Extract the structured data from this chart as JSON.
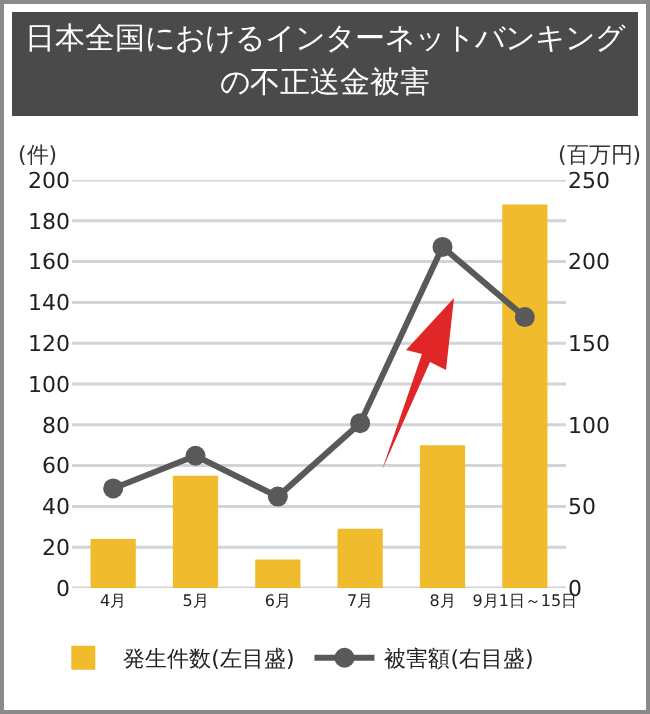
{
  "chart_data": {
    "type": "bar",
    "title": "日本全国におけるインターネットバンキングの不正送金被害",
    "categories": [
      "4月",
      "5月",
      "6月",
      "7月",
      "8月",
      "9月1日～15日"
    ],
    "series": [
      {
        "name": "発生件数(左目盛)",
        "color": "#f0bc2e",
        "values": [
          24,
          55,
          14,
          29,
          70,
          188
        ]
      },
      {
        "name": "被害額(右目盛)",
        "type": "line",
        "axis": "y2",
        "color": "#595959",
        "marker": "circle",
        "line_style": "solid",
        "values": [
          61,
          81,
          56,
          101,
          209,
          166
        ]
      }
    ],
    "ylabel": "(件)",
    "y2label": "(百万円)",
    "ylim": [
      0,
      200
    ],
    "yticks": [
      0,
      20,
      40,
      60,
      80,
      100,
      120,
      140,
      160,
      180,
      200
    ],
    "y2lim": [
      0,
      250
    ],
    "y2ticks": [
      0,
      50,
      100,
      150,
      200,
      250
    ],
    "grid": "y",
    "legend": "bottom"
  }
}
